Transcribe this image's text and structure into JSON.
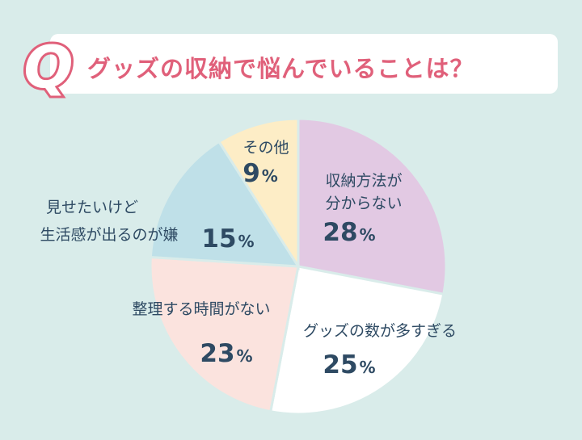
{
  "title": {
    "badge": "Q",
    "text": "グッズの収納で悩んでいることは？"
  },
  "colors": {
    "background": "#d9ecea",
    "accent": "#e0607a",
    "label": "#2e4a63"
  },
  "chart_data": {
    "type": "pie",
    "start_angle_deg": 0,
    "direction": "clockwise",
    "unit": "%",
    "slices": [
      {
        "label": [
          "収納方法が",
          "分からない"
        ],
        "value": 28,
        "color": "#e2c9e3"
      },
      {
        "label": [
          "グッズの数が多すぎる"
        ],
        "value": 25,
        "color": "#ffffff"
      },
      {
        "label": [
          "整理する時間がない"
        ],
        "value": 23,
        "color": "#fbe3de"
      },
      {
        "label": [
          "見せたいけど",
          "生活感が出るのが嫌"
        ],
        "value": 15,
        "color": "#bfe0e8"
      },
      {
        "label": [
          "その他"
        ],
        "value": 9,
        "color": "#fdedc6"
      }
    ]
  }
}
